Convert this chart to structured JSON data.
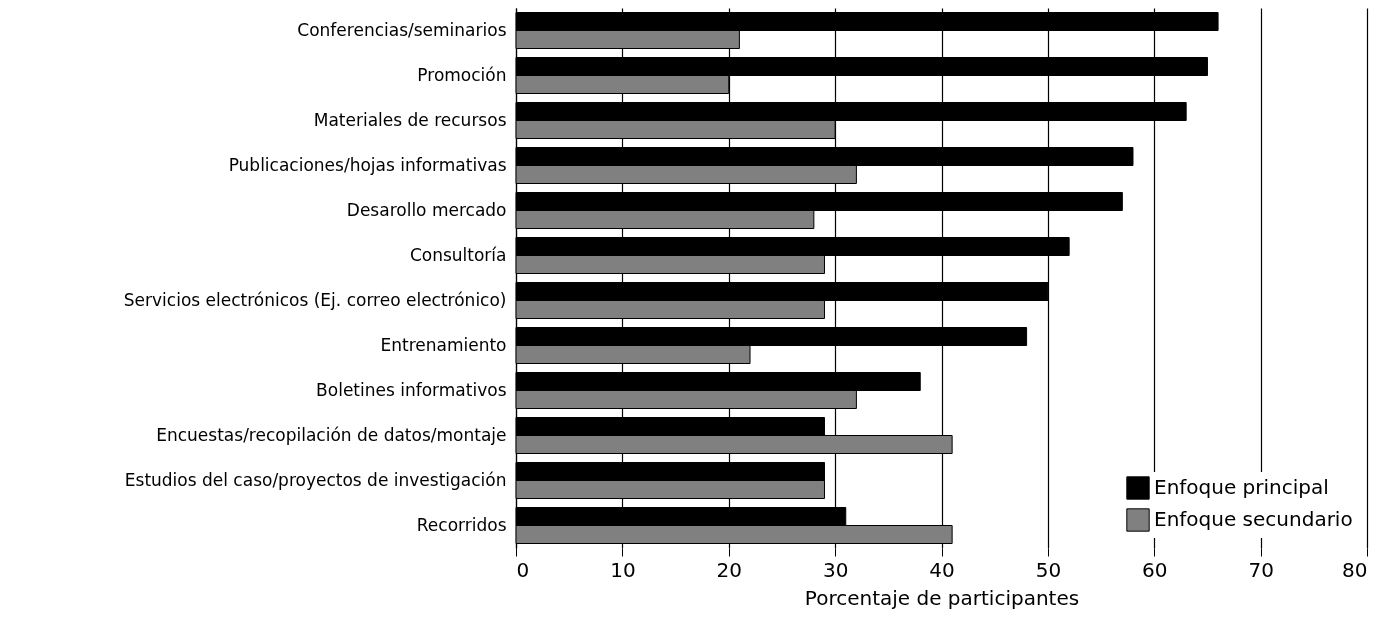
{
  "chart_data": {
    "type": "bar",
    "orientation": "horizontal",
    "xlabel": "Porcentaje de participantes",
    "categories": [
      "Conferencias/seminarios",
      "Promoción",
      "Materiales de recursos",
      "Publicaciones/hojas informativas",
      "Desarollo mercado",
      "Consultoría",
      "Servicios electrónicos (Ej. correo electrónico)",
      "Entrenamiento",
      "Boletines informativos",
      "Encuestas/recopilación de datos/montaje",
      "Estudios del caso/proyectos de investigación",
      "Recorridos"
    ],
    "series": [
      {
        "name": "Enfoque principal",
        "color": "#000000",
        "values": [
          66,
          65,
          63,
          58,
          57,
          52,
          50,
          48,
          38,
          29,
          29,
          31
        ]
      },
      {
        "name": "Enfoque secundario",
        "color": "#808080",
        "values": [
          21,
          20,
          30,
          32,
          28,
          29,
          29,
          22,
          32,
          41,
          29,
          41
        ]
      }
    ],
    "xlim": [
      0,
      80
    ],
    "xticks": [
      0,
      10,
      20,
      30,
      40,
      50,
      60,
      70,
      80
    ],
    "grid": "x",
    "legend": "bottom right"
  }
}
